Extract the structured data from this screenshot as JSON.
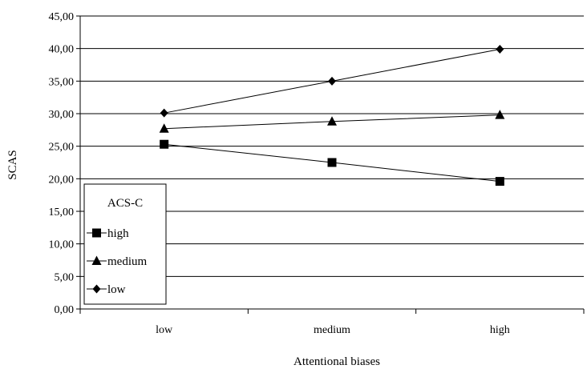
{
  "chart_data": {
    "type": "line",
    "xlabel": "Attentional biases",
    "ylabel": "SCAS",
    "categories": [
      "low",
      "medium",
      "high"
    ],
    "ylim": [
      0,
      45
    ],
    "yticks": [
      "0,00",
      "5,00",
      "10,00",
      "15,00",
      "20,00",
      "25,00",
      "30,00",
      "35,00",
      "40,00",
      "45,00"
    ],
    "grid": true,
    "legend": {
      "title": "ACS-C",
      "position": "bottom-left"
    },
    "series": [
      {
        "name": "high",
        "marker": "square",
        "values": [
          25.3,
          22.5,
          19.6
        ]
      },
      {
        "name": "medium",
        "marker": "triangle",
        "values": [
          27.7,
          28.8,
          29.8
        ]
      },
      {
        "name": "low",
        "marker": "diamond",
        "values": [
          30.1,
          35.0,
          39.9
        ]
      }
    ],
    "colors": {
      "line": "#000000",
      "grid": "#000000",
      "background": "#ffffff"
    }
  }
}
